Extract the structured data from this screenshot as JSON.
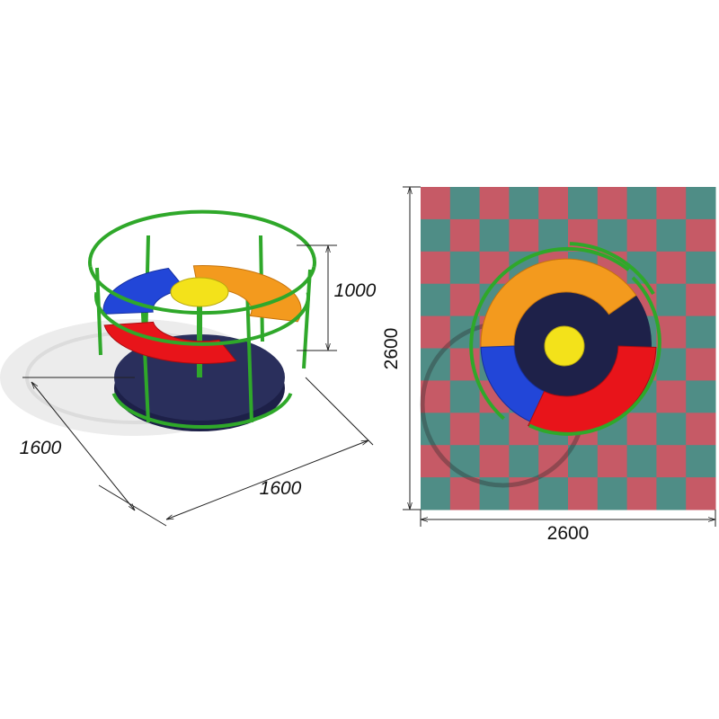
{
  "left_view": {
    "height": 1000,
    "depth": 1600,
    "width": 1600
  },
  "right_view": {
    "height": 2600,
    "width": 2600
  }
}
